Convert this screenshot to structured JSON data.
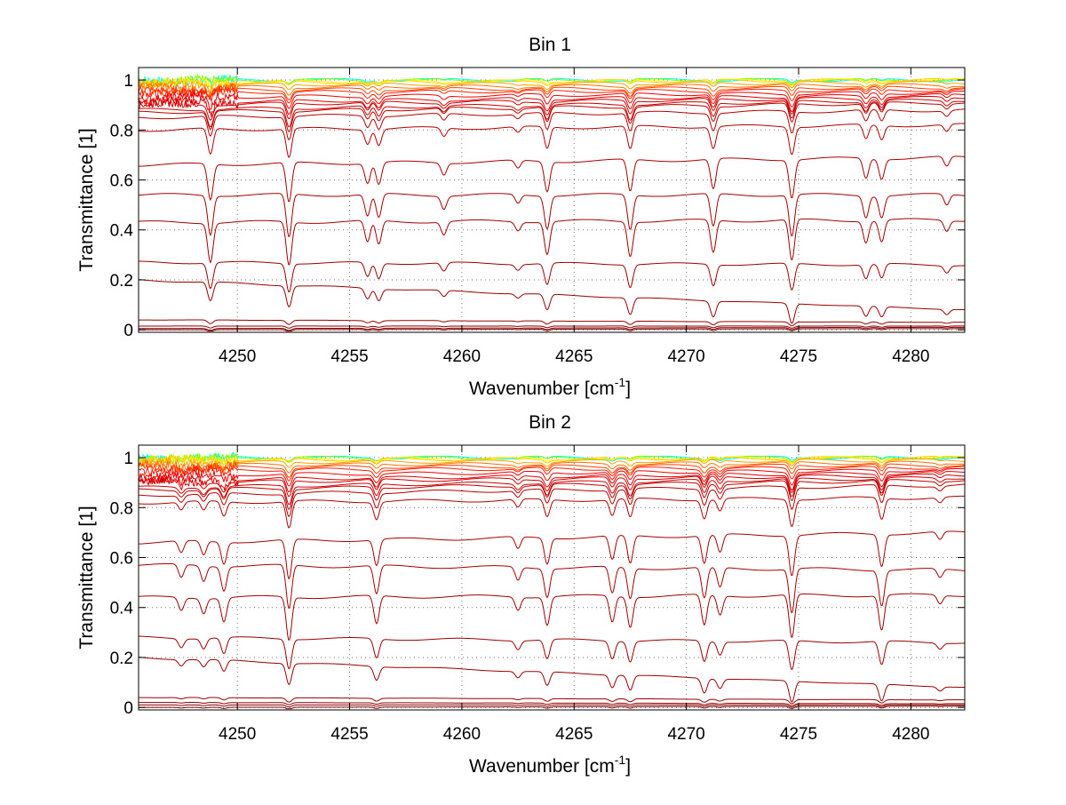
{
  "chart_data": [
    {
      "type": "line",
      "title": "Bin 1",
      "xlabel": "Wavenumber [cm",
      "xlabel_superscript": "-1",
      "xlabel_suffix": "]",
      "ylabel": "Transmittance [1]",
      "xlim": [
        4245.6,
        4282.4
      ],
      "ylim": [
        -0.01,
        1.05
      ],
      "x_ticks": [
        4250,
        4255,
        4260,
        4265,
        4270,
        4275,
        4280
      ],
      "x_tick_labels": [
        "4250",
        "4255",
        "4260",
        "4265",
        "4270",
        "4275",
        "4280"
      ],
      "y_ticks": [
        0,
        0.2,
        0.4,
        0.6,
        0.8,
        1
      ],
      "y_tick_labels": [
        "0",
        "0.2",
        "0.4",
        "0.6",
        "0.8",
        "1"
      ],
      "grid": true,
      "lines": [
        {
          "x": 4248.8,
          "depth": 0.9
        },
        {
          "x": 4252.3,
          "depth": 1.0
        },
        {
          "x": 4255.8,
          "depth": 0.5
        },
        {
          "x": 4256.3,
          "depth": 0.55
        },
        {
          "x": 4259.2,
          "depth": 0.3
        },
        {
          "x": 4262.5,
          "depth": 0.2
        },
        {
          "x": 4263.8,
          "depth": 0.75
        },
        {
          "x": 4267.5,
          "depth": 0.8
        },
        {
          "x": 4271.2,
          "depth": 0.75
        },
        {
          "x": 4274.7,
          "depth": 0.95
        },
        {
          "x": 4278.0,
          "depth": 0.5
        },
        {
          "x": 4278.7,
          "depth": 0.5
        },
        {
          "x": 4281.6,
          "depth": 0.25
        }
      ],
      "series_baselines_left": [
        1.0,
        1.0,
        0.99,
        0.99,
        0.98,
        0.97,
        0.96,
        0.95,
        0.93,
        0.91,
        0.9,
        0.88,
        0.87,
        0.85,
        0.8,
        0.66,
        0.54,
        0.43,
        0.27,
        0.2,
        0.04,
        0.015,
        0.005,
        0.0
      ],
      "series_baselines_right": [
        1.0,
        1.0,
        1.0,
        1.0,
        0.99,
        0.98,
        0.97,
        0.96,
        0.95,
        0.94,
        0.93,
        0.92,
        0.91,
        0.88,
        0.82,
        0.69,
        0.54,
        0.44,
        0.26,
        0.08,
        0.03,
        0.015,
        0.01,
        0.005
      ],
      "series_colors": [
        "#00ffff",
        "#7fff00",
        "#ffff00",
        "#ffd000",
        "#ffa000",
        "#ff7000",
        "#ff4000",
        "#ff2000",
        "#f00000",
        "#e00000",
        "#d40000",
        "#cc0000",
        "#c00000",
        "#b80000",
        "#b00000",
        "#a80000",
        "#a40000",
        "#a00000",
        "#9c0000",
        "#980000",
        "#940000",
        "#900000",
        "#880000",
        "#800000"
      ]
    },
    {
      "type": "line",
      "title": "Bin 2",
      "xlabel": "Wavenumber [cm",
      "xlabel_superscript": "-1",
      "xlabel_suffix": "]",
      "ylabel": "Transmittance [1]",
      "xlim": [
        4245.6,
        4282.4
      ],
      "ylim": [
        -0.01,
        1.05
      ],
      "x_ticks": [
        4250,
        4255,
        4260,
        4265,
        4270,
        4275,
        4280
      ],
      "x_tick_labels": [
        "4250",
        "4255",
        "4260",
        "4265",
        "4270",
        "4275",
        "4280"
      ],
      "y_ticks": [
        0,
        0.2,
        0.4,
        0.6,
        0.8,
        1
      ],
      "y_tick_labels": [
        "0",
        "0.2",
        "0.4",
        "0.6",
        "0.8",
        "1"
      ],
      "grid": true,
      "lines": [
        {
          "x": 4247.5,
          "depth": 0.3
        },
        {
          "x": 4248.5,
          "depth": 0.35
        },
        {
          "x": 4249.4,
          "depth": 0.55
        },
        {
          "x": 4252.3,
          "depth": 1.0
        },
        {
          "x": 4256.2,
          "depth": 0.65
        },
        {
          "x": 4262.5,
          "depth": 0.3
        },
        {
          "x": 4263.8,
          "depth": 0.65
        },
        {
          "x": 4266.7,
          "depth": 0.6
        },
        {
          "x": 4267.5,
          "depth": 0.7
        },
        {
          "x": 4270.8,
          "depth": 0.7
        },
        {
          "x": 4271.5,
          "depth": 0.45
        },
        {
          "x": 4274.7,
          "depth": 1.0
        },
        {
          "x": 4278.7,
          "depth": 0.8
        },
        {
          "x": 4281.3,
          "depth": 0.2
        }
      ],
      "series_baselines_left": [
        1.0,
        1.0,
        0.99,
        0.99,
        0.98,
        0.97,
        0.96,
        0.95,
        0.93,
        0.91,
        0.9,
        0.88,
        0.87,
        0.85,
        0.82,
        0.66,
        0.57,
        0.44,
        0.28,
        0.2,
        0.04,
        0.02,
        0.01,
        0.0
      ],
      "series_baselines_right": [
        1.0,
        1.0,
        1.0,
        1.0,
        0.99,
        0.98,
        0.97,
        0.96,
        0.95,
        0.94,
        0.93,
        0.92,
        0.91,
        0.89,
        0.84,
        0.7,
        0.55,
        0.45,
        0.26,
        0.08,
        0.03,
        0.015,
        0.01,
        0.005
      ],
      "series_colors": [
        "#00ffff",
        "#7fff00",
        "#ffff00",
        "#ffd000",
        "#ffa000",
        "#ff7000",
        "#ff4000",
        "#ff2000",
        "#f00000",
        "#e00000",
        "#d40000",
        "#cc0000",
        "#c00000",
        "#b80000",
        "#b00000",
        "#a80000",
        "#a40000",
        "#a00000",
        "#9c0000",
        "#980000",
        "#940000",
        "#900000",
        "#880000",
        "#800000"
      ]
    }
  ]
}
